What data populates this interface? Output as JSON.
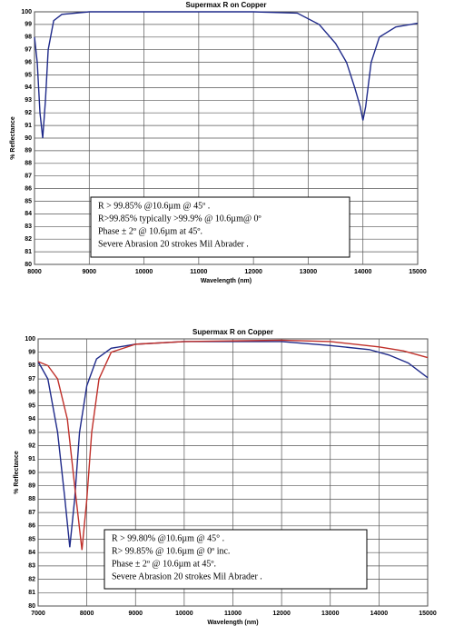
{
  "chart_data": [
    {
      "type": "line",
      "title": "Supermax R on Copper",
      "x_label": "Wavelength (nm)",
      "y_label": "% Reflectance",
      "xlim": [
        8000,
        15000
      ],
      "ylim": [
        80,
        100
      ],
      "xticks": [
        8000,
        9000,
        10000,
        11000,
        12000,
        13000,
        14000,
        15000
      ],
      "yticks": [
        80,
        81,
        82,
        83,
        84,
        85,
        86,
        87,
        88,
        89,
        90,
        91,
        92,
        93,
        94,
        95,
        96,
        97,
        98,
        99,
        100
      ],
      "grid": true,
      "annotations": [
        "R > 99.85% @10.6µm @ 45º .",
        "R>99.85% typically >99.9% @ 10.6µm@ 0º",
        "Phase ± 2º @ 10.6µm at 45º.",
        "Severe Abrasion 20 strokes Mil Abrader ."
      ],
      "series": [
        {
          "color": "#1f2a8a",
          "x": [
            8000,
            8050,
            8100,
            8150,
            8200,
            8250,
            8350,
            8500,
            9000,
            12000,
            12800,
            13200,
            13500,
            13700,
            13850,
            13950,
            14000,
            14050,
            14150,
            14300,
            14600,
            15000
          ],
          "values": [
            98,
            96,
            92,
            90,
            93,
            97,
            99.3,
            99.8,
            100,
            100,
            99.9,
            99,
            97.5,
            96,
            94,
            92.5,
            91.4,
            92.5,
            96,
            98,
            98.8,
            99.1
          ]
        }
      ]
    },
    {
      "type": "line",
      "title": "Supermax R on Copper",
      "x_label": "Wavelength (nm)",
      "y_label": "% Reflectance",
      "xlim": [
        7000,
        15000
      ],
      "ylim": [
        80,
        100
      ],
      "xticks": [
        7000,
        8000,
        9000,
        10000,
        11000,
        12000,
        13000,
        14000,
        15000
      ],
      "yticks": [
        80,
        81,
        82,
        83,
        84,
        85,
        86,
        87,
        88,
        89,
        90,
        91,
        92,
        93,
        94,
        95,
        96,
        97,
        98,
        99,
        100
      ],
      "grid": true,
      "annotations": [
        "R > 99.80% @10.6µm @ 45° .",
        "R> 99.85% @ 10.6µm    @ 0º inc.",
        "Phase ± 2º @ 10.6µm at 45º.",
        "Severe Abrasion 20 strokes Mil Abrader ."
      ],
      "series": [
        {
          "color": "#1f2a8a",
          "x": [
            7000,
            7200,
            7400,
            7550,
            7650,
            7750,
            7850,
            8000,
            8200,
            8500,
            9000,
            10000,
            12000,
            13000,
            13800,
            14200,
            14600,
            15000
          ],
          "values": [
            98.3,
            97,
            93,
            88,
            84.4,
            88,
            93,
            96.5,
            98.5,
            99.3,
            99.6,
            99.8,
            99.8,
            99.5,
            99.2,
            98.8,
            98.2,
            97.1
          ]
        },
        {
          "color": "#c0302a",
          "x": [
            7000,
            7200,
            7400,
            7600,
            7750,
            7900,
            8000,
            8100,
            8250,
            8500,
            9000,
            10000,
            12000,
            13000,
            14000,
            14500,
            15000
          ],
          "values": [
            98.3,
            98,
            97,
            94,
            89,
            84.2,
            88,
            93,
            97,
            99,
            99.6,
            99.8,
            99.9,
            99.8,
            99.4,
            99.1,
            98.6
          ]
        }
      ]
    }
  ]
}
